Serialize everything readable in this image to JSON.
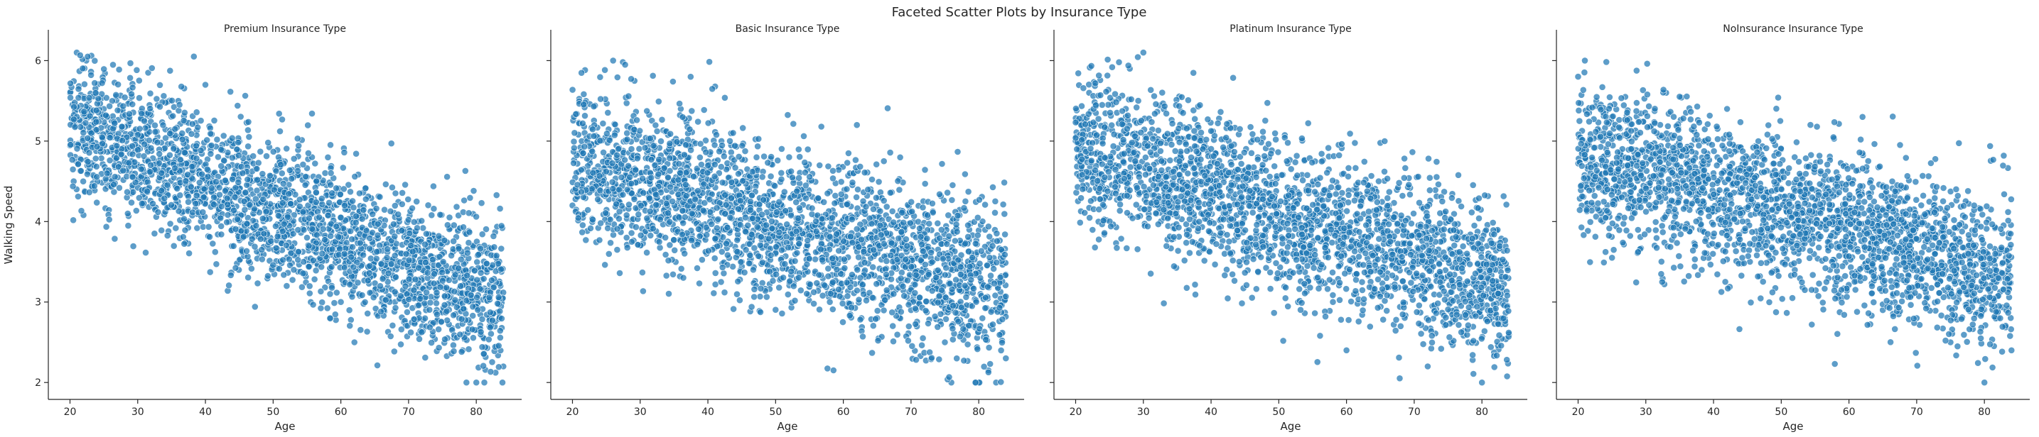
{
  "figure_title": "Faceted Scatter Plots by Insurance Type",
  "colors": {
    "marker": "#1f77b4",
    "marker_edge": "#ffffff",
    "axes": "#262626"
  },
  "chart_data": [
    {
      "type": "scatter",
      "title": "Premium Insurance Type",
      "xlabel": "Age",
      "ylabel": "Walking Speed",
      "xlim": [
        16.8,
        86.7
      ],
      "ylim": [
        1.79,
        6.33
      ],
      "xticks": [
        20,
        30,
        40,
        50,
        60,
        70,
        80
      ],
      "yticks": [
        2,
        3,
        4,
        5,
        6
      ],
      "grid": false,
      "n_points": 2500,
      "trend": {
        "slope": -0.035,
        "intercept": 5.9,
        "residual_sd": 0.45,
        "y_floor": 2.0
      },
      "representative_points": [
        [
          20,
          5.6
        ],
        [
          21,
          6.1
        ],
        [
          22,
          5.2
        ],
        [
          25,
          5.4
        ],
        [
          27,
          4.8
        ],
        [
          30,
          4.5
        ],
        [
          33,
          4.4
        ],
        [
          36,
          5.5
        ],
        [
          38,
          4.6
        ],
        [
          40,
          5.7
        ],
        [
          42,
          4.2
        ],
        [
          45,
          3.9
        ],
        [
          48,
          3.6
        ],
        [
          50,
          4.5
        ],
        [
          52,
          3.2
        ],
        [
          55,
          3.8
        ],
        [
          58,
          3.3
        ],
        [
          60,
          3.0
        ],
        [
          62,
          2.5
        ],
        [
          65,
          3.4
        ],
        [
          68,
          3.0
        ],
        [
          70,
          3.5
        ],
        [
          72,
          2.7
        ],
        [
          75,
          3.2
        ],
        [
          78,
          2.4
        ],
        [
          80,
          2.0
        ],
        [
          82,
          2.8
        ],
        [
          84,
          2.2
        ]
      ]
    },
    {
      "type": "scatter",
      "title": "Basic Insurance Type",
      "xlabel": "Age",
      "ylabel": "Walking Speed",
      "xlim": [
        16.8,
        86.7
      ],
      "ylim": [
        1.79,
        6.33
      ],
      "xticks": [
        20,
        30,
        40,
        50,
        60,
        70,
        80
      ],
      "yticks": [
        2,
        3,
        4,
        5,
        6
      ],
      "grid": false,
      "n_points": 2500,
      "trend": {
        "slope": -0.024,
        "intercept": 5.2,
        "residual_sd": 0.5,
        "y_floor": 2.0
      },
      "representative_points": [
        [
          20,
          4.2
        ],
        [
          22,
          5.5
        ],
        [
          25,
          4.8
        ],
        [
          26,
          6.0
        ],
        [
          28,
          3.8
        ],
        [
          30,
          4.6
        ],
        [
          33,
          4.4
        ],
        [
          36,
          5.4
        ],
        [
          38,
          3.7
        ],
        [
          40,
          4.3
        ],
        [
          42,
          5.0
        ],
        [
          45,
          3.5
        ],
        [
          48,
          4.0
        ],
        [
          50,
          3.6
        ],
        [
          52,
          4.8
        ],
        [
          55,
          3.2
        ],
        [
          58,
          3.9
        ],
        [
          60,
          3.4
        ],
        [
          62,
          5.2
        ],
        [
          65,
          2.8
        ],
        [
          68,
          3.5
        ],
        [
          70,
          2.9
        ],
        [
          72,
          3.8
        ],
        [
          75,
          2.5
        ],
        [
          78,
          3.3
        ],
        [
          80,
          2.0
        ],
        [
          82,
          2.9
        ],
        [
          84,
          2.3
        ]
      ]
    },
    {
      "type": "scatter",
      "title": "Platinum Insurance Type",
      "xlabel": "Age",
      "ylabel": "Walking Speed",
      "xlim": [
        16.8,
        86.7
      ],
      "ylim": [
        1.79,
        6.33
      ],
      "xticks": [
        20,
        30,
        40,
        50,
        60,
        70,
        80
      ],
      "yticks": [
        2,
        3,
        4,
        5,
        6
      ],
      "grid": false,
      "n_points": 2500,
      "trend": {
        "slope": -0.028,
        "intercept": 5.5,
        "residual_sd": 0.48,
        "y_floor": 2.0
      },
      "representative_points": [
        [
          20,
          5.0
        ],
        [
          22,
          5.6
        ],
        [
          25,
          4.3
        ],
        [
          28,
          5.9
        ],
        [
          30,
          6.1
        ],
        [
          32,
          4.6
        ],
        [
          35,
          4.2
        ],
        [
          38,
          5.2
        ],
        [
          40,
          4.0
        ],
        [
          42,
          3.6
        ],
        [
          45,
          4.4
        ],
        [
          48,
          3.8
        ],
        [
          50,
          3.3
        ],
        [
          52,
          4.2
        ],
        [
          55,
          3.5
        ],
        [
          58,
          3.0
        ],
        [
          60,
          2.4
        ],
        [
          62,
          3.7
        ],
        [
          65,
          3.1
        ],
        [
          68,
          2.7
        ],
        [
          70,
          3.3
        ],
        [
          72,
          2.2
        ],
        [
          75,
          3.0
        ],
        [
          78,
          2.5
        ],
        [
          80,
          2.0
        ],
        [
          82,
          3.2
        ],
        [
          84,
          2.6
        ]
      ]
    },
    {
      "type": "scatter",
      "title": "NoInsurance Insurance Type",
      "xlabel": "Age",
      "ylabel": "Walking Speed",
      "xlim": [
        16.8,
        86.7
      ],
      "ylim": [
        1.79,
        6.33
      ],
      "xticks": [
        20,
        30,
        40,
        50,
        60,
        70,
        80
      ],
      "yticks": [
        2,
        3,
        4,
        5,
        6
      ],
      "grid": false,
      "n_points": 2500,
      "trend": {
        "slope": -0.024,
        "intercept": 5.3,
        "residual_sd": 0.48,
        "y_floor": 2.0
      },
      "representative_points": [
        [
          20,
          5.8
        ],
        [
          21,
          6.0
        ],
        [
          23,
          4.6
        ],
        [
          25,
          5.3
        ],
        [
          28,
          4.2
        ],
        [
          30,
          4.8
        ],
        [
          33,
          5.6
        ],
        [
          35,
          4.3
        ],
        [
          38,
          3.9
        ],
        [
          40,
          4.6
        ],
        [
          42,
          5.4
        ],
        [
          45,
          4.0
        ],
        [
          48,
          3.6
        ],
        [
          50,
          4.9
        ],
        [
          52,
          3.4
        ],
        [
          55,
          4.2
        ],
        [
          58,
          3.2
        ],
        [
          60,
          3.7
        ],
        [
          62,
          5.3
        ],
        [
          65,
          2.9
        ],
        [
          68,
          3.6
        ],
        [
          70,
          2.8
        ],
        [
          72,
          3.4
        ],
        [
          75,
          2.5
        ],
        [
          78,
          3.1
        ],
        [
          80,
          2.0
        ],
        [
          82,
          2.8
        ],
        [
          84,
          2.4
        ]
      ]
    }
  ]
}
